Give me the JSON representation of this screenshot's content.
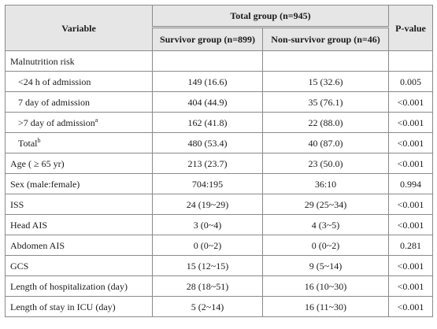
{
  "header": {
    "variable": "Variable",
    "total_group": "Total group (n=945)",
    "survivor": "Survivor group (n=899)",
    "non_survivor": "Non-survivor group (n=46)",
    "p_value": "P-value"
  },
  "rows": [
    {
      "label": "Malnutrition risk",
      "sup": "",
      "indent": false,
      "survivor": "",
      "non_survivor": "",
      "p": ""
    },
    {
      "label": "<24 h of admission",
      "sup": "",
      "indent": true,
      "survivor": "149 (16.6)",
      "non_survivor": "15 (32.6)",
      "p": "0.005"
    },
    {
      "label": "7 day of admission",
      "sup": "",
      "indent": true,
      "survivor": "404 (44.9)",
      "non_survivor": "35 (76.1)",
      "p": "<0.001"
    },
    {
      "label": ">7 day of admission",
      "sup": "a",
      "indent": true,
      "survivor": "162 (41.8)",
      "non_survivor": "22 (88.0)",
      "p": "<0.001"
    },
    {
      "label": "Total",
      "sup": "b",
      "indent": true,
      "survivor": "480 (53.4)",
      "non_survivor": "40 (87.0)",
      "p": "<0.001"
    },
    {
      "label": "Age ( ≥ 65 yr)",
      "sup": "",
      "indent": false,
      "survivor": "213 (23.7)",
      "non_survivor": "23 (50.0)",
      "p": "<0.001"
    },
    {
      "label": "Sex (male:female)",
      "sup": "",
      "indent": false,
      "survivor": "704:195",
      "non_survivor": "36:10",
      "p": "0.994"
    },
    {
      "label": "ISS",
      "sup": "",
      "indent": false,
      "survivor": "24 (19~29)",
      "non_survivor": "29 (25~34)",
      "p": "<0.001"
    },
    {
      "label": "Head AIS",
      "sup": "",
      "indent": false,
      "survivor": "3 (0~4)",
      "non_survivor": "4 (3~5)",
      "p": "<0.001"
    },
    {
      "label": "Abdomen AIS",
      "sup": "",
      "indent": false,
      "survivor": "0 (0~2)",
      "non_survivor": "0 (0~2)",
      "p": "0.281"
    },
    {
      "label": "GCS",
      "sup": "",
      "indent": false,
      "survivor": "15 (12~15)",
      "non_survivor": "9 (5~14)",
      "p": "<0.001"
    },
    {
      "label": "Length of hospitalization (day)",
      "sup": "",
      "indent": false,
      "survivor": "28 (18~51)",
      "non_survivor": "16 (10~30)",
      "p": "<0.001"
    },
    {
      "label": "Length of stay in ICU (day)",
      "sup": "",
      "indent": false,
      "survivor": "5 (2~14)",
      "non_survivor": "16 (11~30)",
      "p": "<0.001"
    }
  ]
}
